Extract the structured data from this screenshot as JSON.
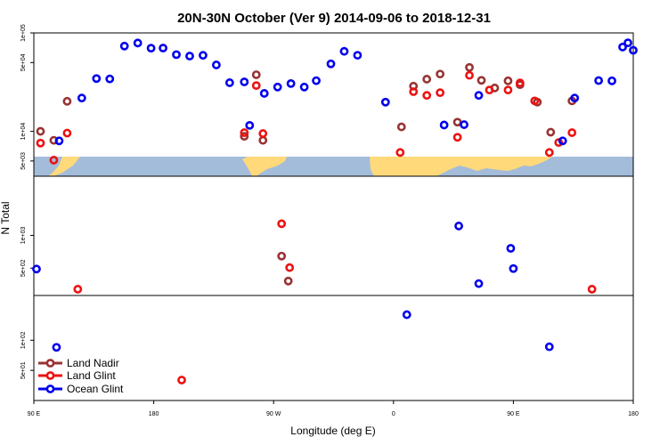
{
  "chart_data": {
    "type": "scatter",
    "title": "20N-30N October (Ver 9)   2014-09-06 to 2018-12-31",
    "xlabel": "Longitude (deg E)",
    "ylabel": "N Total",
    "x_ticks": [
      {
        "value": 90,
        "label": "90 E"
      },
      {
        "value": 180,
        "label": "180"
      },
      {
        "value": 270,
        "label": "90 W"
      },
      {
        "value": 360,
        "label": "0"
      },
      {
        "value": 450,
        "label": "90 E"
      },
      {
        "value": 540,
        "label": "180"
      }
    ],
    "xlim": [
      90,
      540
    ],
    "y_scale": "log",
    "y_panels": [
      {
        "name": "top",
        "ylim": [
          3500,
          100000
        ],
        "ticks": [
          {
            "value": 100000,
            "label": "1e+05"
          },
          {
            "value": 50000,
            "label": "5e+04"
          },
          {
            "value": 10000,
            "label": "1e+04"
          },
          {
            "value": 5000,
            "label": "5e+03"
          }
        ]
      },
      {
        "name": "middle",
        "ylim": [
          280,
          3500
        ],
        "ticks": [
          {
            "value": 1000,
            "label": "1e+03"
          },
          {
            "value": 500,
            "label": "5e+02"
          }
        ]
      },
      {
        "name": "bottom",
        "ylim": [
          25,
          280
        ],
        "ticks": [
          {
            "value": 100,
            "label": "1e+02"
          },
          {
            "value": 50,
            "label": "5e+01"
          }
        ]
      }
    ],
    "map_strip": {
      "ocean_color": "#a3bcda",
      "land_color": "#ffd97a"
    },
    "legend_position": "bottom-left",
    "series": [
      {
        "name": "Land Nadir",
        "color": "#993333",
        "points": [
          {
            "x": 95,
            "y": 10000
          },
          {
            "x": 105,
            "y": 8100
          },
          {
            "x": 115,
            "y": 20200
          },
          {
            "x": 248,
            "y": 8900
          },
          {
            "x": 257,
            "y": 37600
          },
          {
            "x": 262,
            "y": 8100
          },
          {
            "x": 276,
            "y": 645
          },
          {
            "x": 281,
            "y": 380
          },
          {
            "x": 366,
            "y": 11100
          },
          {
            "x": 375,
            "y": 28800
          },
          {
            "x": 385,
            "y": 33900
          },
          {
            "x": 395,
            "y": 38200
          },
          {
            "x": 408,
            "y": 12400
          },
          {
            "x": 417,
            "y": 44600
          },
          {
            "x": 426,
            "y": 33000
          },
          {
            "x": 436,
            "y": 27600
          },
          {
            "x": 446,
            "y": 32600
          },
          {
            "x": 455,
            "y": 29800
          },
          {
            "x": 468,
            "y": 19800
          },
          {
            "x": 478,
            "y": 9800
          },
          {
            "x": 494,
            "y": 20400
          }
        ]
      },
      {
        "name": "Land Glint",
        "color": "#ee1111",
        "points": [
          {
            "x": 95,
            "y": 7600
          },
          {
            "x": 105,
            "y": 5100
          },
          {
            "x": 115,
            "y": 9600
          },
          {
            "x": 123,
            "y": 320
          },
          {
            "x": 201,
            "y": 40
          },
          {
            "x": 248,
            "y": 9700
          },
          {
            "x": 257,
            "y": 29200
          },
          {
            "x": 262,
            "y": 9500
          },
          {
            "x": 276,
            "y": 1280
          },
          {
            "x": 282,
            "y": 505
          },
          {
            "x": 365,
            "y": 6100
          },
          {
            "x": 375,
            "y": 25300
          },
          {
            "x": 385,
            "y": 23200
          },
          {
            "x": 395,
            "y": 24700
          },
          {
            "x": 408,
            "y": 8700
          },
          {
            "x": 417,
            "y": 37100
          },
          {
            "x": 432,
            "y": 26300
          },
          {
            "x": 446,
            "y": 26300
          },
          {
            "x": 455,
            "y": 31100
          },
          {
            "x": 466,
            "y": 20400
          },
          {
            "x": 477,
            "y": 6100
          },
          {
            "x": 484,
            "y": 7700
          },
          {
            "x": 494,
            "y": 9700
          },
          {
            "x": 509,
            "y": 320
          }
        ]
      },
      {
        "name": "Ocean Glint",
        "color": "#0000ee",
        "points": [
          {
            "x": 92,
            "y": 490
          },
          {
            "x": 107,
            "y": 85
          },
          {
            "x": 109,
            "y": 8000
          },
          {
            "x": 126,
            "y": 21800
          },
          {
            "x": 137,
            "y": 34400
          },
          {
            "x": 147,
            "y": 34100
          },
          {
            "x": 158,
            "y": 73500
          },
          {
            "x": 168,
            "y": 79000
          },
          {
            "x": 178,
            "y": 70000
          },
          {
            "x": 187,
            "y": 70200
          },
          {
            "x": 197,
            "y": 60200
          },
          {
            "x": 207,
            "y": 58200
          },
          {
            "x": 217,
            "y": 59200
          },
          {
            "x": 227,
            "y": 47300
          },
          {
            "x": 237,
            "y": 31200
          },
          {
            "x": 248,
            "y": 31800
          },
          {
            "x": 252,
            "y": 11500
          },
          {
            "x": 263,
            "y": 24300
          },
          {
            "x": 273,
            "y": 28200
          },
          {
            "x": 283,
            "y": 30600
          },
          {
            "x": 293,
            "y": 28200
          },
          {
            "x": 302,
            "y": 32700
          },
          {
            "x": 313,
            "y": 48500
          },
          {
            "x": 323,
            "y": 65000
          },
          {
            "x": 333,
            "y": 59300
          },
          {
            "x": 354,
            "y": 19800
          },
          {
            "x": 370,
            "y": 180
          },
          {
            "x": 398,
            "y": 11600
          },
          {
            "x": 409,
            "y": 1220
          },
          {
            "x": 413,
            "y": 11700
          },
          {
            "x": 424,
            "y": 360
          },
          {
            "x": 424,
            "y": 23200
          },
          {
            "x": 448,
            "y": 760
          },
          {
            "x": 450,
            "y": 495
          },
          {
            "x": 477,
            "y": 86
          },
          {
            "x": 487,
            "y": 8000
          },
          {
            "x": 496,
            "y": 21800
          },
          {
            "x": 514,
            "y": 32800
          },
          {
            "x": 524,
            "y": 32600
          },
          {
            "x": 532,
            "y": 71900
          },
          {
            "x": 536,
            "y": 79300
          },
          {
            "x": 540,
            "y": 66600
          }
        ]
      }
    ]
  }
}
